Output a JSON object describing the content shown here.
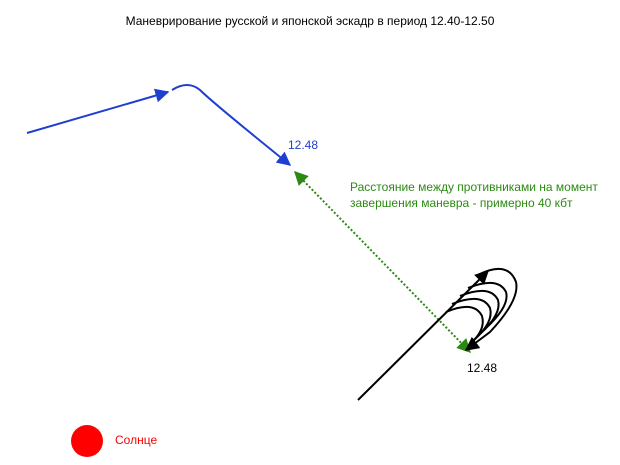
{
  "title": "Маневрирование русской и японской эскадр в период 12.40-12.50",
  "labels": {
    "russian_time": "12.48",
    "japanese_time": "12.48",
    "distance_note": [
      "Расстояние между противниками на момент",
      "завершения маневра - примерно 40 кбт"
    ],
    "sun": "Солнце"
  }
}
